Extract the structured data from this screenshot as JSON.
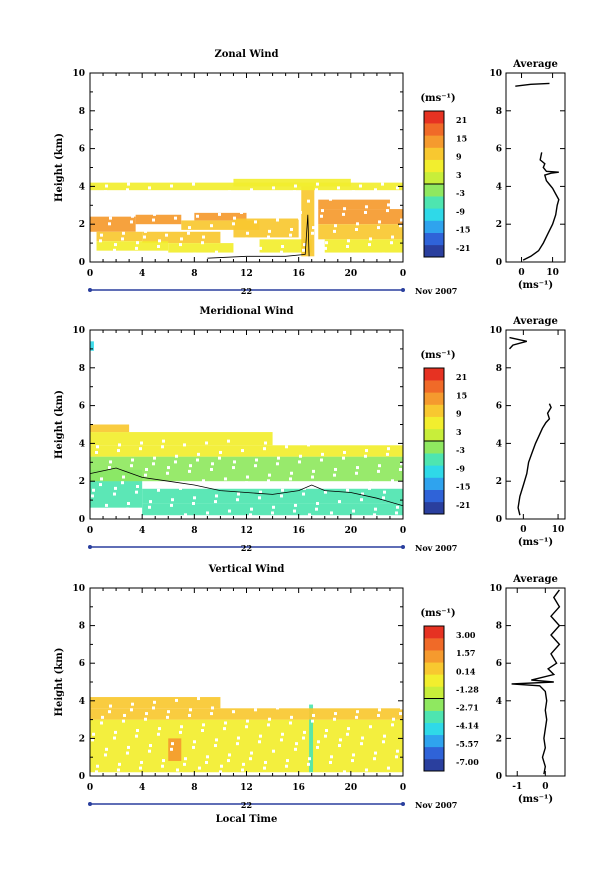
{
  "chart_data": [
    {
      "type": "heatmap",
      "title": "Zonal Wind",
      "xlabel": "",
      "ylabel": "Height (km)",
      "x_ticks": [
        "0",
        "4",
        "8",
        "12",
        "16",
        "20",
        "0"
      ],
      "y_ticks": [
        "0",
        "2",
        "4",
        "6",
        "8",
        "10"
      ],
      "xlim": [
        0,
        24
      ],
      "ylim": [
        0,
        10
      ],
      "date_label": "22",
      "month_label": "Nov 2007",
      "colorbar": {
        "unit": "(ms⁻¹)",
        "ticks": [
          "21",
          "15",
          "9",
          "3",
          "-3",
          "-9",
          "-15",
          "-21"
        ],
        "range": [
          -24,
          24
        ]
      },
      "profile": {
        "title": "Average",
        "xlabel": "(ms⁻¹)",
        "x_ticks": [
          "0",
          "10"
        ],
        "x_tick_values": [
          0,
          10
        ],
        "xlim": [
          -5,
          14
        ],
        "y_ticks": [
          "0",
          "2",
          "4",
          "6",
          "8",
          "10"
        ],
        "points": [
          [
            0.5,
            0.1
          ],
          [
            3,
            0.3
          ],
          [
            5.5,
            0.6
          ],
          [
            7,
            1
          ],
          [
            8.5,
            1.5
          ],
          [
            10,
            2
          ],
          [
            11,
            2.5
          ],
          [
            11.5,
            3
          ],
          [
            12,
            3.3
          ],
          [
            11,
            3.6
          ],
          [
            10,
            3.9
          ],
          [
            9,
            4.1
          ],
          [
            8,
            4.3
          ],
          [
            7.5,
            4.6
          ],
          [
            9.5,
            4.7
          ],
          [
            12,
            4.75
          ],
          [
            8,
            4.8
          ],
          [
            7,
            5.0
          ],
          [
            7.5,
            5.2
          ],
          [
            6,
            5.4
          ],
          [
            6.5,
            5.8
          ]
        ],
        "upper_points": [
          [
            -2,
            9.3
          ],
          [
            3,
            9.4
          ],
          [
            9,
            9.45
          ]
        ]
      },
      "cells": [
        {
          "x": [
            0,
            3.5
          ],
          "y": [
            1.6,
            2.4
          ],
          "v": 15
        },
        {
          "x": [
            3.5,
            7
          ],
          "y": [
            2.0,
            2.5
          ],
          "v": 14
        },
        {
          "x": [
            0.5,
            4
          ],
          "y": [
            1.1,
            1.6
          ],
          "v": 10
        },
        {
          "x": [
            4,
            10
          ],
          "y": [
            1.0,
            1.6
          ],
          "v": 10
        },
        {
          "x": [
            0.5,
            6
          ],
          "y": [
            0.6,
            1.1
          ],
          "v": 4
        },
        {
          "x": [
            6,
            11
          ],
          "y": [
            0.5,
            1.0
          ],
          "v": 5
        },
        {
          "x": [
            7,
            13
          ],
          "y": [
            1.7,
            2.2
          ],
          "v": 10
        },
        {
          "x": [
            8,
            12
          ],
          "y": [
            2.2,
            2.6
          ],
          "v": 12
        },
        {
          "x": [
            11,
            16
          ],
          "y": [
            1.3,
            2.3
          ],
          "v": 10
        },
        {
          "x": [
            13,
            17
          ],
          "y": [
            0.5,
            1.2
          ],
          "v": 7
        },
        {
          "x": [
            16.2,
            17.2
          ],
          "y": [
            0.3,
            4.0
          ],
          "v": 8
        },
        {
          "x": [
            17.5,
            24
          ],
          "y": [
            2.0,
            2.8
          ],
          "v": 13
        },
        {
          "x": [
            17.5,
            23
          ],
          "y": [
            2.8,
            3.3
          ],
          "v": 12
        },
        {
          "x": [
            17.5,
            24
          ],
          "y": [
            1.2,
            2.0
          ],
          "v": 9
        },
        {
          "x": [
            18,
            24
          ],
          "y": [
            0.5,
            1.2
          ],
          "v": 4
        },
        {
          "x": [
            0,
            24
          ],
          "y": [
            3.8,
            4.2
          ],
          "v": 7
        },
        {
          "x": [
            11,
            20
          ],
          "y": [
            4.0,
            4.4
          ],
          "v": 6
        }
      ],
      "contour_zero": [
        [
          9,
          0.2
        ],
        [
          12,
          0.3
        ],
        [
          15,
          0.3
        ],
        [
          16.5,
          0.4
        ],
        [
          16.7,
          2.5
        ],
        [
          16.8,
          0.3
        ]
      ]
    },
    {
      "type": "heatmap",
      "title": "Meridional Wind",
      "xlabel": "",
      "ylabel": "Height (km)",
      "x_ticks": [
        "0",
        "4",
        "8",
        "12",
        "16",
        "20",
        "0"
      ],
      "y_ticks": [
        "0",
        "2",
        "4",
        "6",
        "8",
        "10"
      ],
      "xlim": [
        0,
        24
      ],
      "ylim": [
        0,
        10
      ],
      "date_label": "22",
      "month_label": "Nov 2007",
      "colorbar": {
        "unit": "(ms⁻¹)",
        "ticks": [
          "21",
          "15",
          "9",
          "3",
          "-3",
          "-9",
          "-15",
          "-21"
        ],
        "range": [
          -24,
          24
        ]
      },
      "profile": {
        "title": "Average",
        "xlabel": "(ms⁻¹)",
        "x_ticks": [
          "0",
          "10"
        ],
        "x_tick_values": [
          0,
          10
        ],
        "xlim": [
          -5,
          12
        ],
        "y_ticks": [
          "0",
          "2",
          "4",
          "6",
          "8",
          "10"
        ],
        "points": [
          [
            -1,
            0.2
          ],
          [
            -1.5,
            0.6
          ],
          [
            -1,
            1.2
          ],
          [
            0,
            1.8
          ],
          [
            1,
            2.4
          ],
          [
            1.5,
            3
          ],
          [
            2.5,
            3.5
          ],
          [
            3.5,
            4
          ],
          [
            4.5,
            4.4
          ],
          [
            5.5,
            4.8
          ],
          [
            6.5,
            5.1
          ],
          [
            7.5,
            5.3
          ],
          [
            7,
            5.6
          ],
          [
            8,
            5.9
          ],
          [
            7.5,
            6.1
          ]
        ],
        "upper_points": [
          [
            -4,
            9.0
          ],
          [
            -3,
            9.2
          ],
          [
            1,
            9.4
          ],
          [
            -4,
            9.6
          ]
        ]
      },
      "cells": [
        {
          "x": [
            0,
            4
          ],
          "y": [
            0.6,
            2.6
          ],
          "v": -7
        },
        {
          "x": [
            0,
            24
          ],
          "y": [
            2.0,
            3.3
          ],
          "v": -1
        },
        {
          "x": [
            4,
            24
          ],
          "y": [
            0.8,
            1.6
          ],
          "v": -5
        },
        {
          "x": [
            4,
            24
          ],
          "y": [
            0.2,
            0.8
          ],
          "v": -6
        },
        {
          "x": [
            0,
            24
          ],
          "y": [
            3.3,
            3.9
          ],
          "v": 5
        },
        {
          "x": [
            0,
            14
          ],
          "y": [
            3.9,
            4.6
          ],
          "v": 7
        },
        {
          "x": [
            0,
            3
          ],
          "y": [
            4.6,
            5.0
          ],
          "v": 9
        },
        {
          "x": [
            0,
            0.3
          ],
          "y": [
            8.9,
            9.4
          ],
          "v": -11
        }
      ],
      "contour_zero": [
        [
          0,
          2.4
        ],
        [
          2,
          2.7
        ],
        [
          4,
          2.2
        ],
        [
          6,
          2.0
        ],
        [
          8,
          1.8
        ],
        [
          10,
          1.5
        ],
        [
          12,
          1.4
        ],
        [
          14,
          1.3
        ],
        [
          16,
          1.5
        ],
        [
          17,
          1.8
        ],
        [
          18,
          1.5
        ],
        [
          20,
          1.4
        ],
        [
          22,
          1.1
        ],
        [
          24,
          0.7
        ]
      ]
    },
    {
      "type": "heatmap",
      "title": "Vertical Wind",
      "xlabel": "Local Time",
      "ylabel": "Height (km)",
      "x_ticks": [
        "0",
        "4",
        "8",
        "12",
        "16",
        "20",
        "0"
      ],
      "y_ticks": [
        "0",
        "2",
        "4",
        "6",
        "8",
        "10"
      ],
      "xlim": [
        0,
        24
      ],
      "ylim": [
        0,
        10
      ],
      "date_label": "22",
      "month_label": "Nov 2007",
      "colorbar": {
        "unit": "(ms⁻¹)",
        "ticks": [
          "3.00",
          "1.57",
          "0.14",
          "-1.28",
          "-2.71",
          "-4.14",
          "-5.57",
          "-7.00"
        ],
        "range": [
          -8,
          4
        ]
      },
      "profile": {
        "title": "Average",
        "xlabel": "(ms⁻¹)",
        "x_ticks": [
          "-1",
          "0"
        ],
        "x_tick_values": [
          -1,
          0
        ],
        "xlim": [
          -1.4,
          0.7
        ],
        "y_ticks": [
          "0",
          "2",
          "4",
          "6",
          "8",
          "10"
        ],
        "points": [
          [
            -0.05,
            0.1
          ],
          [
            0,
            0.5
          ],
          [
            -0.1,
            1
          ],
          [
            0,
            1.5
          ],
          [
            -0.05,
            2
          ],
          [
            0,
            2.5
          ],
          [
            0.05,
            3
          ],
          [
            0,
            3.5
          ],
          [
            0.05,
            4
          ],
          [
            0,
            4.5
          ],
          [
            -0.2,
            4.8
          ],
          [
            -1.2,
            4.9
          ],
          [
            0.3,
            5
          ],
          [
            -0.5,
            5.1
          ],
          [
            0.3,
            5.4
          ],
          [
            0.1,
            5.7
          ],
          [
            0.4,
            6
          ],
          [
            0.2,
            6.5
          ],
          [
            0.5,
            7
          ],
          [
            0.2,
            7.5
          ],
          [
            0.5,
            8
          ],
          [
            0.2,
            8.5
          ],
          [
            0.5,
            9
          ],
          [
            0.3,
            9.5
          ],
          [
            0.5,
            9.9
          ]
        ],
        "upper_points": []
      },
      "cells": [
        {
          "x": [
            0,
            24
          ],
          "y": [
            0.2,
            3.0
          ],
          "v": -0.2
        },
        {
          "x": [
            6,
            7
          ],
          "y": [
            0.8,
            2.0
          ],
          "v": 1.8
        },
        {
          "x": [
            16.8,
            17.1
          ],
          "y": [
            0.2,
            3.8
          ],
          "v": -3.5
        },
        {
          "x": [
            0,
            24
          ],
          "y": [
            3.0,
            3.6
          ],
          "v": 0.8
        },
        {
          "x": [
            0,
            10
          ],
          "y": [
            3.6,
            4.2
          ],
          "v": 0.9
        }
      ],
      "contour_zero": []
    }
  ]
}
